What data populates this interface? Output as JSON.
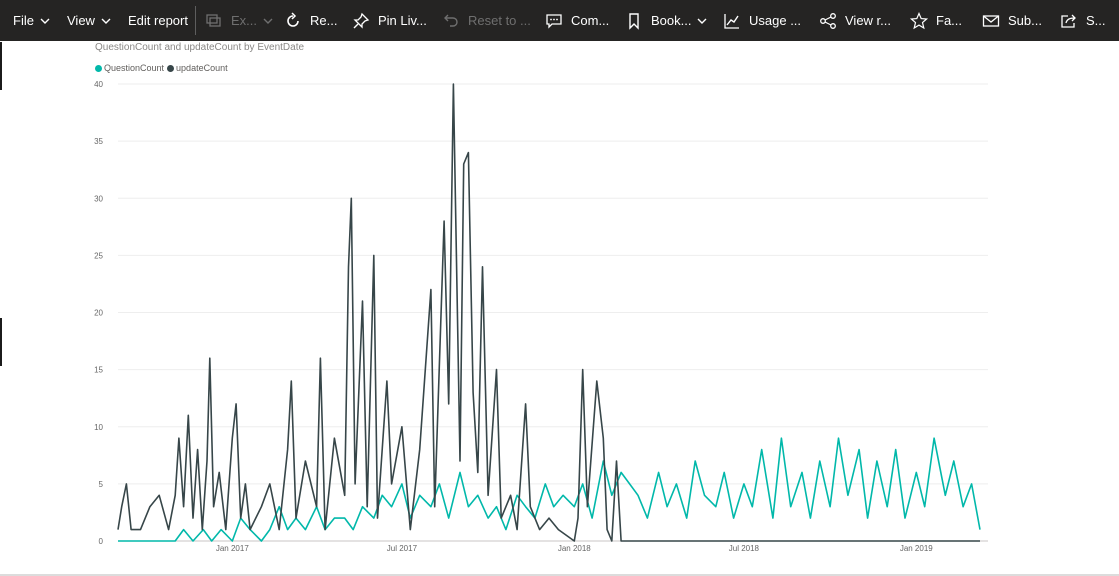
{
  "toolbar": {
    "file": "File",
    "view": "View",
    "edit_report": "Edit report",
    "export": "Ex...",
    "refresh": "Re...",
    "pin_live": "Pin Liv...",
    "reset_to": "Reset to ...",
    "comments": "Com...",
    "bookmarks": "Book...",
    "usage": "Usage ...",
    "view_related": "View r...",
    "favorite": "Fa...",
    "subscribe": "Sub...",
    "share": "S..."
  },
  "colors": {
    "toolbar_bg": "#252423",
    "question": "#01b8aa",
    "update": "#374649"
  },
  "chart_data": {
    "type": "line",
    "title": "QuestionCount and updateCount by EventDate",
    "xlabel": "",
    "ylabel": "",
    "x_range": [
      "2016-09-01",
      "2019-03-10"
    ],
    "ylim": [
      0,
      40
    ],
    "y_ticks": [
      0,
      5,
      10,
      15,
      20,
      25,
      30,
      35,
      40
    ],
    "x_ticks": [
      {
        "date": "2017-01-01",
        "label": "Jan 2017"
      },
      {
        "date": "2017-07-01",
        "label": "Jul 2017"
      },
      {
        "date": "2018-01-01",
        "label": "Jan 2018"
      },
      {
        "date": "2018-07-01",
        "label": "Jul 2018"
      },
      {
        "date": "2019-01-01",
        "label": "Jan 2019"
      }
    ],
    "grid": "horizontal",
    "legend_position": "top-left",
    "series": [
      {
        "name": "QuestionCount",
        "color": "#01b8aa",
        "points": [
          [
            "2016-09-01",
            0
          ],
          [
            "2016-10-01",
            0
          ],
          [
            "2016-11-01",
            0
          ],
          [
            "2016-11-10",
            1
          ],
          [
            "2016-11-20",
            0
          ],
          [
            "2016-12-01",
            1
          ],
          [
            "2016-12-10",
            0
          ],
          [
            "2016-12-20",
            1
          ],
          [
            "2017-01-01",
            0
          ],
          [
            "2017-01-10",
            2
          ],
          [
            "2017-01-20",
            1
          ],
          [
            "2017-02-01",
            0
          ],
          [
            "2017-02-10",
            1
          ],
          [
            "2017-02-20",
            3
          ],
          [
            "2017-03-01",
            1
          ],
          [
            "2017-03-10",
            2
          ],
          [
            "2017-03-20",
            1
          ],
          [
            "2017-04-01",
            3
          ],
          [
            "2017-04-10",
            1
          ],
          [
            "2017-04-20",
            2
          ],
          [
            "2017-05-01",
            2
          ],
          [
            "2017-05-10",
            1
          ],
          [
            "2017-05-20",
            3
          ],
          [
            "2017-06-01",
            2
          ],
          [
            "2017-06-10",
            4
          ],
          [
            "2017-06-20",
            3
          ],
          [
            "2017-07-01",
            5
          ],
          [
            "2017-07-10",
            2
          ],
          [
            "2017-07-20",
            4
          ],
          [
            "2017-08-01",
            3
          ],
          [
            "2017-08-10",
            5
          ],
          [
            "2017-08-20",
            2
          ],
          [
            "2017-09-01",
            6
          ],
          [
            "2017-09-10",
            3
          ],
          [
            "2017-09-20",
            4
          ],
          [
            "2017-10-01",
            2
          ],
          [
            "2017-10-10",
            3
          ],
          [
            "2017-10-20",
            1
          ],
          [
            "2017-11-01",
            4
          ],
          [
            "2017-11-10",
            3
          ],
          [
            "2017-11-20",
            2
          ],
          [
            "2017-12-01",
            5
          ],
          [
            "2017-12-10",
            3
          ],
          [
            "2017-12-20",
            4
          ],
          [
            "2018-01-01",
            3
          ],
          [
            "2018-01-10",
            5
          ],
          [
            "2018-01-20",
            2
          ],
          [
            "2018-02-01",
            7
          ],
          [
            "2018-02-10",
            4
          ],
          [
            "2018-02-20",
            6
          ],
          [
            "2018-03-01",
            5
          ],
          [
            "2018-03-10",
            4
          ],
          [
            "2018-03-20",
            2
          ],
          [
            "2018-04-01",
            6
          ],
          [
            "2018-04-10",
            3
          ],
          [
            "2018-04-20",
            5
          ],
          [
            "2018-05-01",
            2
          ],
          [
            "2018-05-10",
            7
          ],
          [
            "2018-05-20",
            4
          ],
          [
            "2018-06-01",
            3
          ],
          [
            "2018-06-10",
            6
          ],
          [
            "2018-06-20",
            2
          ],
          [
            "2018-07-01",
            5
          ],
          [
            "2018-07-10",
            3
          ],
          [
            "2018-07-20",
            8
          ],
          [
            "2018-08-01",
            2
          ],
          [
            "2018-08-10",
            9
          ],
          [
            "2018-08-20",
            3
          ],
          [
            "2018-09-01",
            6
          ],
          [
            "2018-09-10",
            2
          ],
          [
            "2018-09-20",
            7
          ],
          [
            "2018-10-01",
            3
          ],
          [
            "2018-10-10",
            9
          ],
          [
            "2018-10-20",
            4
          ],
          [
            "2018-11-01",
            8
          ],
          [
            "2018-11-10",
            2
          ],
          [
            "2018-11-20",
            7
          ],
          [
            "2018-12-01",
            3
          ],
          [
            "2018-12-10",
            8
          ],
          [
            "2018-12-20",
            2
          ],
          [
            "2019-01-01",
            6
          ],
          [
            "2019-01-10",
            3
          ],
          [
            "2019-01-20",
            9
          ],
          [
            "2019-02-01",
            4
          ],
          [
            "2019-02-10",
            7
          ],
          [
            "2019-02-20",
            3
          ],
          [
            "2019-03-01",
            5
          ],
          [
            "2019-03-10",
            1
          ]
        ]
      },
      {
        "name": "updateCount",
        "color": "#374649",
        "points": [
          [
            "2016-09-01",
            1
          ],
          [
            "2016-09-05",
            3
          ],
          [
            "2016-09-10",
            5
          ],
          [
            "2016-09-15",
            1
          ],
          [
            "2016-09-25",
            1
          ],
          [
            "2016-10-05",
            3
          ],
          [
            "2016-10-15",
            4
          ],
          [
            "2016-10-25",
            1
          ],
          [
            "2016-11-01",
            4
          ],
          [
            "2016-11-05",
            9
          ],
          [
            "2016-11-10",
            3
          ],
          [
            "2016-11-15",
            11
          ],
          [
            "2016-11-20",
            2
          ],
          [
            "2016-11-25",
            8
          ],
          [
            "2016-11-30",
            1
          ],
          [
            "2016-12-05",
            7
          ],
          [
            "2016-12-08",
            16
          ],
          [
            "2016-12-12",
            3
          ],
          [
            "2016-12-18",
            6
          ],
          [
            "2016-12-25",
            1
          ],
          [
            "2017-01-01",
            9
          ],
          [
            "2017-01-05",
            12
          ],
          [
            "2017-01-10",
            2
          ],
          [
            "2017-01-15",
            5
          ],
          [
            "2017-01-20",
            1
          ],
          [
            "2017-02-01",
            3
          ],
          [
            "2017-02-10",
            5
          ],
          [
            "2017-02-20",
            1
          ],
          [
            "2017-03-01",
            8
          ],
          [
            "2017-03-05",
            14
          ],
          [
            "2017-03-10",
            2
          ],
          [
            "2017-03-20",
            7
          ],
          [
            "2017-04-01",
            3
          ],
          [
            "2017-04-05",
            16
          ],
          [
            "2017-04-10",
            1
          ],
          [
            "2017-04-20",
            9
          ],
          [
            "2017-05-01",
            4
          ],
          [
            "2017-05-05",
            24
          ],
          [
            "2017-05-08",
            30
          ],
          [
            "2017-05-12",
            5
          ],
          [
            "2017-05-20",
            21
          ],
          [
            "2017-05-25",
            3
          ],
          [
            "2017-06-01",
            25
          ],
          [
            "2017-06-05",
            2
          ],
          [
            "2017-06-15",
            14
          ],
          [
            "2017-06-20",
            5
          ],
          [
            "2017-07-01",
            10
          ],
          [
            "2017-07-10",
            1
          ],
          [
            "2017-07-20",
            8
          ],
          [
            "2017-08-01",
            22
          ],
          [
            "2017-08-05",
            3
          ],
          [
            "2017-08-15",
            28
          ],
          [
            "2017-08-20",
            12
          ],
          [
            "2017-08-25",
            40
          ],
          [
            "2017-09-01",
            7
          ],
          [
            "2017-09-05",
            33
          ],
          [
            "2017-09-10",
            34
          ],
          [
            "2017-09-15",
            13
          ],
          [
            "2017-09-20",
            6
          ],
          [
            "2017-09-25",
            24
          ],
          [
            "2017-10-01",
            4
          ],
          [
            "2017-10-10",
            15
          ],
          [
            "2017-10-15",
            2
          ],
          [
            "2017-10-25",
            4
          ],
          [
            "2017-11-01",
            1
          ],
          [
            "2017-11-10",
            12
          ],
          [
            "2017-11-15",
            3
          ],
          [
            "2017-11-25",
            1
          ],
          [
            "2017-12-05",
            2
          ],
          [
            "2017-12-15",
            1
          ],
          [
            "2018-01-01",
            0
          ],
          [
            "2018-01-05",
            2
          ],
          [
            "2018-01-10",
            15
          ],
          [
            "2018-01-15",
            3
          ],
          [
            "2018-01-25",
            14
          ],
          [
            "2018-02-01",
            9
          ],
          [
            "2018-02-05",
            1
          ],
          [
            "2018-02-10",
            0
          ],
          [
            "2018-02-15",
            7
          ],
          [
            "2018-02-20",
            0
          ],
          [
            "2018-03-01",
            0
          ],
          [
            "2018-06-01",
            0
          ],
          [
            "2018-09-01",
            0
          ],
          [
            "2018-12-01",
            0
          ],
          [
            "2019-03-10",
            0
          ]
        ]
      }
    ]
  }
}
